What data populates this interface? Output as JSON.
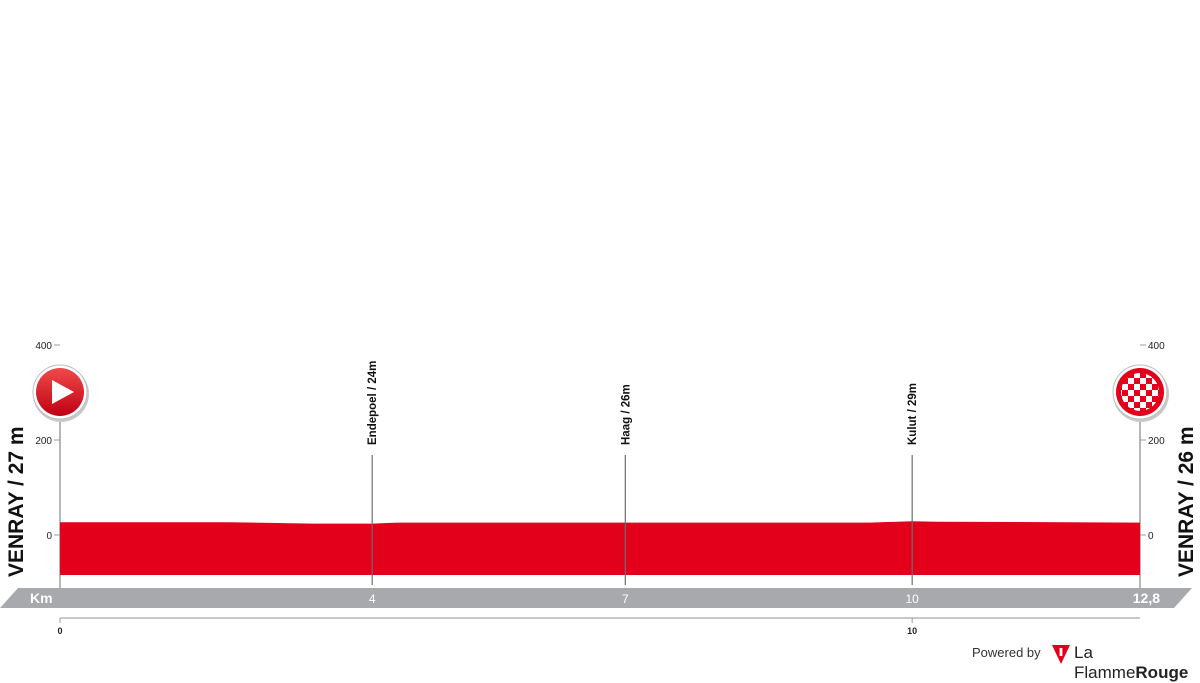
{
  "chart_data": {
    "type": "area",
    "title": "",
    "xlabel": "Km",
    "ylabel": "",
    "x_total": "12,8",
    "xlim": [
      0,
      12.8
    ],
    "ylim": [
      -150,
      450
    ],
    "y_ticks": [
      0,
      200,
      400
    ],
    "y_tick_labels": [
      "0",
      "200",
      "400"
    ],
    "x_tick_labels_top": [
      {
        "x": 3.7,
        "label": "4"
      },
      {
        "x": 6.7,
        "label": "7"
      },
      {
        "x": 10.1,
        "label": "10"
      }
    ],
    "x_tick_labels_bottom": [
      {
        "x": 0,
        "label": "0"
      },
      {
        "x": 10.1,
        "label": "10"
      }
    ],
    "series": [
      {
        "x": [
          0,
          2.0,
          3.0,
          3.7,
          4.0,
          6.7,
          9.6,
          10.1,
          10.4,
          12.8
        ],
        "y": [
          27,
          27,
          24,
          24,
          26,
          26,
          26,
          29,
          28,
          26
        ]
      }
    ],
    "waypoints": [
      {
        "x": 3.7,
        "label": "Endepoel / 24m"
      },
      {
        "x": 6.7,
        "label": "Haag / 26m"
      },
      {
        "x": 10.1,
        "label": "Kulut / 29m"
      }
    ],
    "start": {
      "label": "VENRAY / 27 m",
      "icon": "start-arrow-icon"
    },
    "finish": {
      "label": "VENRAY / 26 m",
      "icon": "finish-checkered-icon"
    },
    "colors": {
      "profile": "#e2001a",
      "axis_band": "#a7a9ac",
      "start_circle": "#e2001a"
    }
  },
  "footer": {
    "powered_by": "Powered by",
    "brand_light": "La Flamme",
    "brand_bold": "Rouge"
  }
}
